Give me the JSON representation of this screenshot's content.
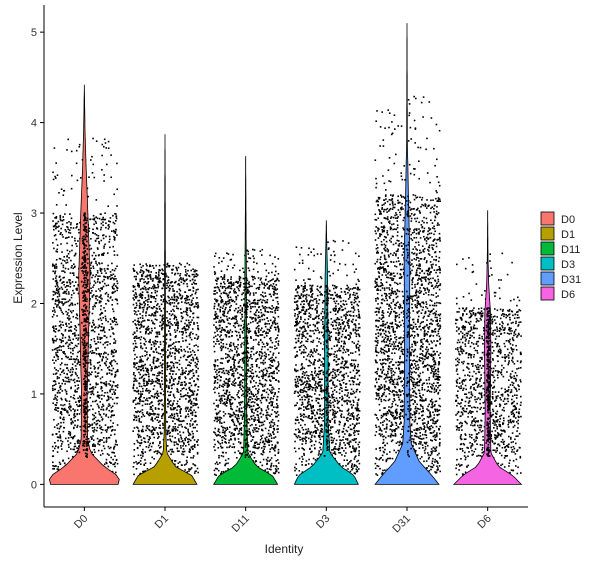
{
  "chart_data": {
    "type": "violin",
    "xlabel": "Identity",
    "ylabel": "Expression Level",
    "ylim": [
      -0.25,
      5.3
    ],
    "yticks": [
      0,
      1,
      2,
      3,
      4,
      5
    ],
    "grid": false,
    "legend_position": "right",
    "categories": [
      "D0",
      "D1",
      "D11",
      "D3",
      "D31",
      "D6"
    ],
    "series": [
      {
        "name": "D0",
        "color": "#F8766D",
        "max": 4.42,
        "jitter_top": 3.85,
        "dense_top": 3.0,
        "dot_density": 1.0,
        "colored_frac": 0.45,
        "violin": [
          [
            0,
            0.95
          ],
          [
            0.08,
            1.0
          ],
          [
            0.2,
            0.55
          ],
          [
            0.35,
            0.18
          ],
          [
            0.5,
            0.09
          ],
          [
            1.0,
            0.08
          ],
          [
            2.0,
            0.14
          ],
          [
            2.3,
            0.16
          ],
          [
            3.0,
            0.1
          ],
          [
            3.5,
            0.05
          ],
          [
            3.9,
            0.02
          ],
          [
            4.42,
            0.0
          ]
        ]
      },
      {
        "name": "D1",
        "color": "#B79F00",
        "max": 3.87,
        "jitter_top": 2.45,
        "dense_top": 2.35,
        "dot_density": 1.0,
        "colored_frac": 0.0,
        "violin": [
          [
            0,
            0.9
          ],
          [
            0.1,
            0.75
          ],
          [
            0.2,
            0.28
          ],
          [
            0.35,
            0.05
          ],
          [
            0.6,
            0.02
          ],
          [
            1.5,
            0.015
          ],
          [
            3.0,
            0.008
          ],
          [
            3.87,
            0.0
          ]
        ]
      },
      {
        "name": "D11",
        "color": "#00BA38",
        "max": 3.63,
        "jitter_top": 2.6,
        "dense_top": 2.3,
        "dot_density": 1.0,
        "colored_frac": 0.12,
        "violin": [
          [
            0,
            0.9
          ],
          [
            0.1,
            0.75
          ],
          [
            0.2,
            0.3
          ],
          [
            0.35,
            0.06
          ],
          [
            0.8,
            0.03
          ],
          [
            1.5,
            0.025
          ],
          [
            2.4,
            0.02
          ],
          [
            3.0,
            0.008
          ],
          [
            3.63,
            0.0
          ]
        ]
      },
      {
        "name": "D3",
        "color": "#00BFC4",
        "max": 2.92,
        "jitter_top": 2.7,
        "dense_top": 2.2,
        "dot_density": 0.95,
        "colored_frac": 0.15,
        "violin": [
          [
            0,
            0.9
          ],
          [
            0.1,
            0.78
          ],
          [
            0.2,
            0.4
          ],
          [
            0.35,
            0.1
          ],
          [
            0.7,
            0.05
          ],
          [
            1.5,
            0.05
          ],
          [
            2.3,
            0.035
          ],
          [
            2.7,
            0.01
          ],
          [
            2.92,
            0.0
          ]
        ]
      },
      {
        "name": "D31",
        "color": "#619CFF",
        "max": 5.1,
        "jitter_top": 4.3,
        "dense_top": 3.2,
        "dot_density": 1.35,
        "colored_frac": 0.1,
        "violin": [
          [
            0,
            0.9
          ],
          [
            0.1,
            0.7
          ],
          [
            0.25,
            0.35
          ],
          [
            0.45,
            0.12
          ],
          [
            0.7,
            0.08
          ],
          [
            1.5,
            0.07
          ],
          [
            2.5,
            0.08
          ],
          [
            3.2,
            0.04
          ],
          [
            3.8,
            0.01
          ],
          [
            5.1,
            0.0
          ]
        ]
      },
      {
        "name": "D6",
        "color": "#F564E3",
        "max": 3.03,
        "jitter_top": 2.6,
        "dense_top": 1.95,
        "dot_density": 0.65,
        "colored_frac": 0.35,
        "violin": [
          [
            0,
            0.95
          ],
          [
            0.1,
            0.7
          ],
          [
            0.2,
            0.3
          ],
          [
            0.35,
            0.09
          ],
          [
            0.8,
            0.07
          ],
          [
            1.5,
            0.09
          ],
          [
            1.9,
            0.08
          ],
          [
            2.2,
            0.03
          ],
          [
            2.5,
            0.01
          ],
          [
            3.03,
            0.0
          ]
        ]
      }
    ]
  }
}
